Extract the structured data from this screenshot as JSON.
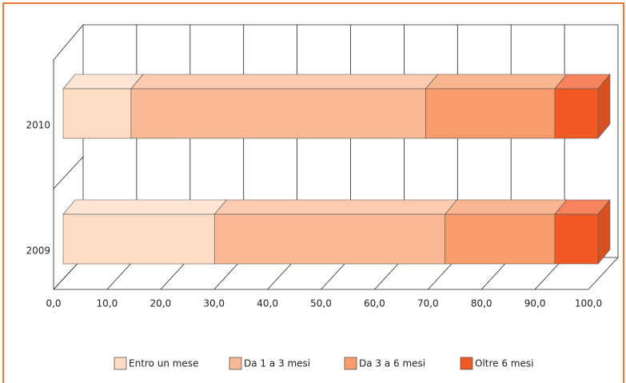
{
  "chart_data": {
    "type": "bar3d_stacked_horizontal",
    "categories": [
      "2009",
      "2010"
    ],
    "series": [
      {
        "name": "Entro un mese",
        "color": "#fddcc6",
        "values": [
          28.3,
          12.7
        ]
      },
      {
        "name": "Da 1 a 3 mesi",
        "color": "#fbb995",
        "values": [
          43.1,
          55.1
        ]
      },
      {
        "name": "Da 3 a 6 mesi",
        "color": "#f89c6c",
        "values": [
          20.5,
          24.1
        ]
      },
      {
        "name": "Oltre 6 mesi",
        "color": "#f15a24",
        "values": [
          8.1,
          8.1
        ]
      }
    ],
    "xlim": [
      0,
      100
    ],
    "xticks": [
      {
        "value": 0,
        "label": "0,0"
      },
      {
        "value": 10,
        "label": "10,0"
      },
      {
        "value": 20,
        "label": "20,0"
      },
      {
        "value": 30,
        "label": "30,0"
      },
      {
        "value": 40,
        "label": "40,0"
      },
      {
        "value": 50,
        "label": "50,0"
      },
      {
        "value": 60,
        "label": "60,0"
      },
      {
        "value": 70,
        "label": "70,0"
      },
      {
        "value": 80,
        "label": "80,0"
      },
      {
        "value": 90,
        "label": "90,0"
      },
      {
        "value": 100,
        "label": "100,0"
      }
    ],
    "grid": true,
    "legend": "bottom"
  }
}
